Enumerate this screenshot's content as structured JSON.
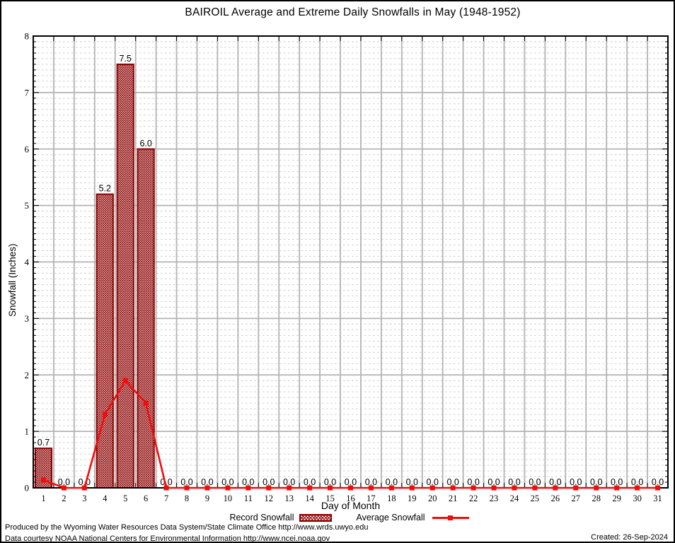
{
  "chart_data": {
    "type": "bar",
    "title": "BAIROIL Average and Extreme Daily Snowfalls in May (1948-1952)",
    "xlabel": "Day of Month",
    "ylabel": "Snowfall (Inches)",
    "x": [
      1,
      2,
      3,
      4,
      5,
      6,
      7,
      8,
      9,
      10,
      11,
      12,
      13,
      14,
      15,
      16,
      17,
      18,
      19,
      20,
      21,
      22,
      23,
      24,
      25,
      26,
      27,
      28,
      29,
      30,
      31
    ],
    "series": [
      {
        "name": "Record Snowfall",
        "type": "bar",
        "color": "#8b0000",
        "values": [
          0.7,
          0.0,
          0.0,
          5.2,
          7.5,
          6.0,
          0.0,
          0.0,
          0.0,
          0.0,
          0.0,
          0.0,
          0.0,
          0.0,
          0.0,
          0.0,
          0.0,
          0.0,
          0.0,
          0.0,
          0.0,
          0.0,
          0.0,
          0.0,
          0.0,
          0.0,
          0.0,
          0.0,
          0.0,
          0.0,
          0.0
        ],
        "value_labels_decimals": 1
      },
      {
        "name": "Average Snowfall",
        "type": "line",
        "color": "#f20c0c",
        "values": [
          0.14,
          0.0,
          0.0,
          1.3,
          1.9,
          1.5,
          0.0,
          0.0,
          0.0,
          0.0,
          0.0,
          0.0,
          0.0,
          0.0,
          0.0,
          0.0,
          0.0,
          0.0,
          0.0,
          0.0,
          0.0,
          0.0,
          0.0,
          0.0,
          0.0,
          0.0,
          0.0,
          0.0,
          0.0,
          0.0,
          0.0
        ]
      }
    ],
    "ylim": [
      0,
      8
    ],
    "yticks": [
      0,
      1,
      2,
      3,
      4,
      5,
      6,
      7,
      8
    ],
    "minor_y_step": 0.1,
    "grid": true,
    "legend_position": "bottom"
  },
  "colors": {
    "bar": "#8b0000",
    "line": "#f20c0c",
    "grid_major": "#b3b3b3",
    "grid_minor": "#c6c6c6",
    "axis": "#000000"
  },
  "footer": {
    "produced": "Produced by the Wyoming Water Resources Data System/State Climate Office http://www.wrds.uwyo.edu",
    "courtesy": "Data courtesy NOAA National Centers for Environmental Information http://www.ncei.noaa.gov",
    "created": "Created: 26-Sep-2024"
  }
}
